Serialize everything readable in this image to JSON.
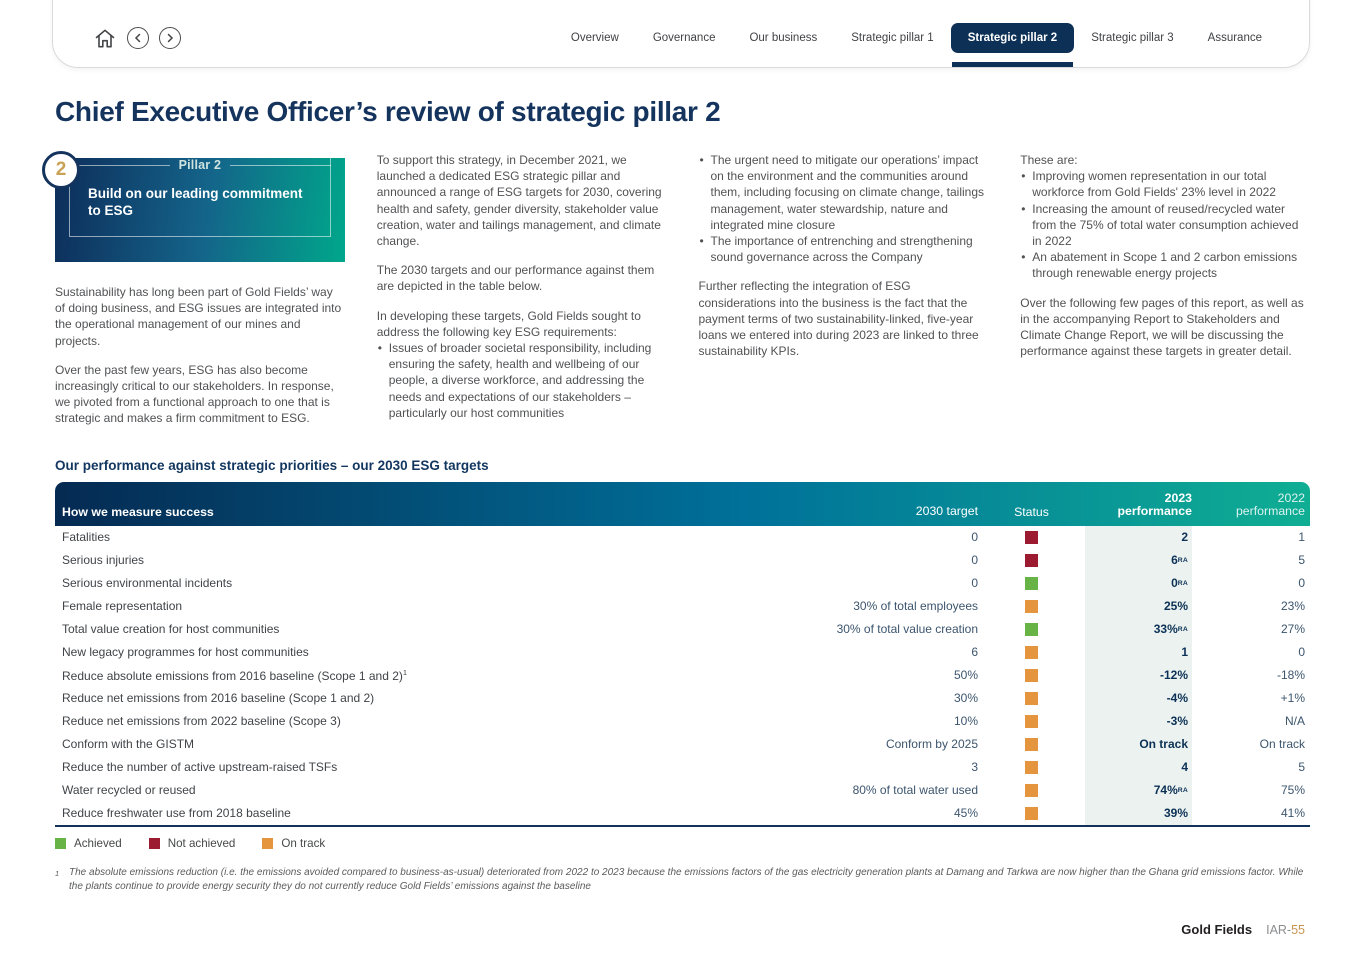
{
  "nav": {
    "tabs": [
      {
        "label": "Overview",
        "active": false
      },
      {
        "label": "Governance",
        "active": false
      },
      {
        "label": "Our business",
        "active": false
      },
      {
        "label": "Strategic pillar 1",
        "active": false
      },
      {
        "label": "Strategic pillar 2",
        "active": true
      },
      {
        "label": "Strategic pillar 3",
        "active": false
      },
      {
        "label": "Assurance",
        "active": false
      }
    ]
  },
  "page_title": "Chief Executive Officer’s review of strategic pillar 2",
  "pillar": {
    "badge": "2",
    "label": "Pillar 2",
    "title": "Build on our leading commitment to ESG"
  },
  "columns": {
    "col1": {
      "p1": "Sustainability has long been part of Gold Fields’ way of doing business, and ESG issues are integrated into the operational management of our mines and projects.",
      "p2": "Over the past few years, ESG has also become increasingly critical to our stakeholders. In response, we pivoted from a functional approach to one that is strategic and makes a firm commitment to ESG."
    },
    "col2": {
      "p1": "To support this strategy, in December 2021, we launched a dedicated ESG strategic pillar and announced a range of ESG targets for 2030, covering health and safety, gender diversity, stakeholder value creation, water and tailings management, and climate change.",
      "p2": "The 2030 targets and our performance against them are depicted in the table below.",
      "p3": "In developing these targets, Gold Fields sought to address the following key ESG requirements:",
      "bullets": [
        "Issues of broader societal responsibility, including ensuring the safety, health and wellbeing of our people, a diverse workforce, and addressing the needs and expectations of our stakeholders – particularly our host communities"
      ]
    },
    "col3": {
      "bullets": [
        "The urgent need to mitigate our operations’ impact on the environment and the communities around them, including focusing on climate change, tailings management, water stewardship, nature and integrated mine closure",
        "The importance of entrenching and strengthening sound governance across the Company"
      ],
      "p1": "Further reflecting the integration of ESG considerations into the business is the fact that the payment terms of two sustainability-linked, five-year loans we entered into during 2023 are linked to three sustainability KPIs."
    },
    "col4": {
      "intro": "These are:",
      "bullets": [
        "Improving women representation in our total workforce from Gold Fields' 23% level in 2022",
        "Increasing the amount of reused/recycled water from the 75% of total water consumption achieved in 2022",
        "An abatement in Scope 1 and 2 carbon emissions through renewable energy projects"
      ],
      "p1": "Over the following few pages of this report, as well as in the accompanying Report to Stakeholders and Climate Change Report, we will be discussing the performance against these targets in greater detail."
    }
  },
  "table": {
    "section_title": "Our performance against strategic priorities – our 2030 ESG targets",
    "headers": {
      "measure": "How we measure success",
      "target": "2030 target",
      "status": "Status",
      "y2023_line1": "2023",
      "y2023_line2": "performance",
      "y2022_line1": "2022",
      "y2022_line2": "performance"
    },
    "rows": [
      {
        "label": "Fatalities",
        "target": "0",
        "status": "not_achieved",
        "y2023": "2",
        "y2022": "1"
      },
      {
        "label": "Serious injuries",
        "target": "0",
        "status": "not_achieved",
        "y2023": "6",
        "sup2023": "RA",
        "y2022": "5"
      },
      {
        "label": "Serious environmental incidents",
        "target": "0",
        "status": "achieved",
        "y2023": "0",
        "sup2023": "RA",
        "y2022": "0"
      },
      {
        "label": "Female representation",
        "target": "30% of total employees",
        "status": "on_track",
        "y2023": "25%",
        "y2022": "23%"
      },
      {
        "label": "Total value creation for host communities",
        "target": "30% of total value creation",
        "status": "achieved",
        "y2023": "33%",
        "sup2023": "RA",
        "y2022": "27%"
      },
      {
        "label": "New legacy programmes for host communities",
        "target": "6",
        "status": "on_track",
        "y2023": "1",
        "y2022": "0"
      },
      {
        "label": "Reduce absolute emissions from 2016 baseline (Scope 1 and 2)",
        "label_sup": "1",
        "target": "50%",
        "status": "on_track",
        "y2023": "-12%",
        "y2022": "-18%"
      },
      {
        "label": "Reduce net emissions from 2016 baseline (Scope 1 and 2)",
        "target": "30%",
        "status": "on_track",
        "y2023": "-4%",
        "y2022": "+1%"
      },
      {
        "label": "Reduce net emissions from 2022 baseline (Scope 3)",
        "target": "10%",
        "status": "on_track",
        "y2023": "-3%",
        "y2022": "N/A"
      },
      {
        "label": "Conform with the GISTM",
        "target": "Conform by 2025",
        "status": "on_track",
        "y2023": "On track",
        "y2022": "On track"
      },
      {
        "label": "Reduce the number of active upstream-raised TSFs",
        "target": "3",
        "status": "on_track",
        "y2023": "4",
        "y2022": "5"
      },
      {
        "label": "Water recycled or reused",
        "target": "80% of total water used",
        "status": "on_track",
        "y2023": "74%",
        "sup2023": "RA",
        "y2022": "75%"
      },
      {
        "label": "Reduce freshwater use from 2018 baseline",
        "target": "45%",
        "status": "on_track",
        "y2023": "39%",
        "y2022": "41%"
      }
    ]
  },
  "legend": {
    "items": [
      {
        "label": "Achieved",
        "status": "achieved"
      },
      {
        "label": "Not achieved",
        "status": "not_achieved"
      },
      {
        "label": "On track",
        "status": "on_track"
      }
    ]
  },
  "footnote": {
    "sup": "1",
    "text": "The absolute emissions reduction (i.e. the emissions avoided compared to business-as-usual) deteriorated from 2022 to 2023 because the emissions factors of the gas electricity generation plants at Damang and Tarkwa are now higher than the Ghana grid emissions factor. While the plants continue to provide energy security they do not currently reduce Gold Fields’ emissions against the baseline",
    "style_note": ""
  },
  "footer": {
    "brand": "Gold Fields",
    "page_prefix": "IAR-",
    "page_number": "55"
  },
  "colors": {
    "status": {
      "achieved": "#67b346",
      "not_achieved": "#9c1b30",
      "on_track": "#e5953d"
    },
    "accent_navy": "#0d3056",
    "accent_teal": "#00a78c",
    "accent_gold": "#c9964f"
  }
}
